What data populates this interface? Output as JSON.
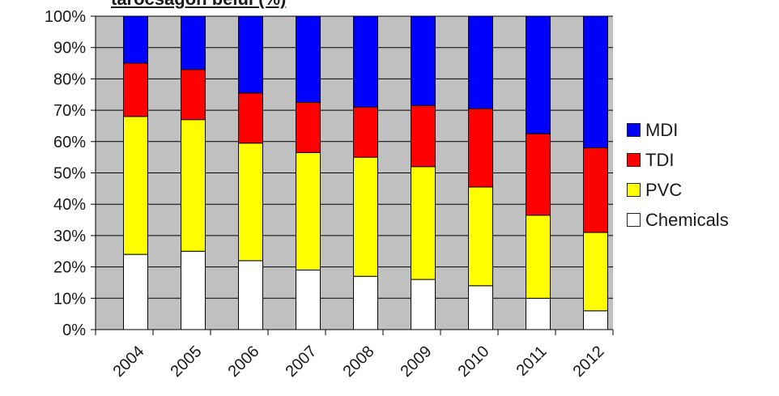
{
  "chart_data": {
    "type": "bar",
    "stacked": true,
    "title": "tarocsagon belül (%)",
    "categories": [
      "2004",
      "2005",
      "2006",
      "2007",
      "2008",
      "2009",
      "2010",
      "2011",
      "2012"
    ],
    "series": [
      {
        "name": "Chemicals",
        "color": "#ffffff",
        "values": [
          24,
          25,
          22,
          19,
          17,
          16,
          14,
          10,
          6
        ]
      },
      {
        "name": "PVC",
        "color": "#ffff00",
        "values": [
          44,
          42,
          37.5,
          37.5,
          38,
          36,
          31.5,
          26.5,
          25
        ]
      },
      {
        "name": "TDI",
        "color": "#ff0000",
        "values": [
          17,
          16,
          16,
          16,
          16,
          19.5,
          25,
          26,
          27
        ]
      },
      {
        "name": "MDI",
        "color": "#0000ff",
        "values": [
          15,
          17,
          24.5,
          27.5,
          29,
          28.5,
          29.5,
          37.5,
          42
        ]
      }
    ],
    "y_tick_labels": [
      "0%",
      "10%",
      "20%",
      "30%",
      "40%",
      "50%",
      "60%",
      "70%",
      "80%",
      "90%",
      "100%"
    ],
    "ylim": [
      0,
      100
    ],
    "grid": true,
    "plot_background": "#c0c0c0",
    "legend_position": "right"
  },
  "legend": [
    {
      "name": "MDI",
      "color": "#0000ff"
    },
    {
      "name": "TDI",
      "color": "#ff0000"
    },
    {
      "name": "PVC",
      "color": "#ffff00"
    },
    {
      "name": "Chemicals",
      "color": "#ffffff"
    }
  ]
}
